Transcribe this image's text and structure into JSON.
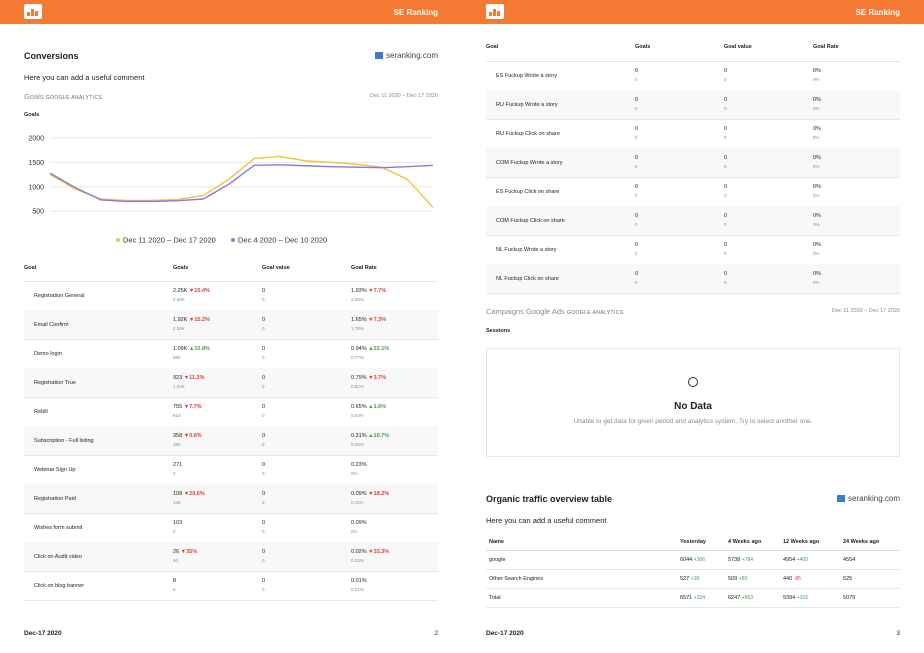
{
  "brand": "SE Ranking",
  "conversions": {
    "title": "Conversions",
    "site": "seranking.com",
    "comment": "Here you can add a useful comment",
    "source": "Goals",
    "source_tag": "GOOGLE ANALYTICS",
    "period": "Dec 11 2020 – Dec 17 2020",
    "chart_title": "Goals"
  },
  "chart_data": {
    "type": "line",
    "categories": [
      null,
      null,
      null,
      null,
      null,
      null,
      null,
      null,
      null,
      null,
      null,
      null,
      null,
      null,
      null,
      null
    ],
    "ylim": [
      300,
      2100
    ],
    "yticks": [
      500,
      1000,
      1500,
      2000
    ],
    "grid": true,
    "series": [
      {
        "name": "Dec 11 2020 – Dec 17 2020",
        "color": "#f7c13a",
        "values": [
          1250,
          950,
          750,
          720,
          720,
          740,
          820,
          1150,
          1580,
          1620,
          1530,
          1500,
          1460,
          1400,
          1150,
          580
        ]
      },
      {
        "name": "Dec 4 2020 – Dec 10 2020",
        "color": "#8a78e0",
        "values": [
          1280,
          980,
          730,
          700,
          700,
          715,
          750,
          1050,
          1440,
          1450,
          1430,
          1410,
          1400,
          1390,
          1410,
          1440
        ]
      }
    ]
  },
  "goals_table": {
    "columns": [
      "Goal",
      "Goals",
      "Goal value",
      "Goal Rate"
    ],
    "rows": [
      {
        "goal": "Registration General",
        "goals": "2.25K",
        "goals_change": "▼15.4%",
        "goals_prev": "2.66K",
        "value": "0",
        "value_prev": "0",
        "rate": "1.93%",
        "rate_change": "▼7.7%",
        "rate_prev": "2.09%"
      },
      {
        "goal": "Email Confirm",
        "goals": "1.92K",
        "goals_change": "▼15.2%",
        "goals_prev": "2.26K",
        "value": "0",
        "value_prev": "0",
        "rate": "1.65%",
        "rate_change": "▼7.3%",
        "rate_prev": "1.78%"
      },
      {
        "goal": "Demo login",
        "goals": "1.09K",
        "goals_change": "▲10.8%",
        "goals_prev": "982",
        "value": "0",
        "value_prev": "0",
        "rate": "0.94%",
        "rate_change": "▲22.1%",
        "rate_prev": "0.77%"
      },
      {
        "goal": "Registration True",
        "goals": "923",
        "goals_change": "▼11.2%",
        "goals_prev": "1.04K",
        "value": "0",
        "value_prev": "0",
        "rate": "0.79%",
        "rate_change": "▼3.7%",
        "rate_prev": "0.82%"
      },
      {
        "goal": "Rebill",
        "goals": "755",
        "goals_change": "▼7.7%",
        "goals_prev": "818",
        "value": "0",
        "value_prev": "0",
        "rate": "0.65%",
        "rate_change": "▲1.6%",
        "rate_prev": "0.64%"
      },
      {
        "goal": "Subscription - Full listing",
        "goals": "358",
        "goals_change": "▼0.6%",
        "goals_prev": "360",
        "value": "0",
        "value_prev": "0",
        "rate": "0.31%",
        "rate_change": "▲10.7%",
        "rate_prev": "0.28%"
      },
      {
        "goal": "Webinar Sign Up",
        "goals": "271",
        "goals_prev": "0",
        "value": "0",
        "value_prev": "0",
        "rate": "0.23%",
        "rate_prev": "0%"
      },
      {
        "goal": "Registration Paid",
        "goals": "108",
        "goals_change": "▼20.6%",
        "goals_prev": "136",
        "value": "0",
        "value_prev": "0",
        "rate": "0.09%",
        "rate_change": "▼18.2%",
        "rate_prev": "0.11%"
      },
      {
        "goal": "Wishes form submit",
        "goals": "103",
        "goals_prev": "0",
        "value": "0",
        "value_prev": "0",
        "rate": "0.09%",
        "rate_prev": "0%"
      },
      {
        "goal": "Click on Audit video",
        "goals": "26",
        "goals_change": "▼35%",
        "goals_prev": "40",
        "value": "0",
        "value_prev": "0",
        "rate": "0.02%",
        "rate_change": "▼33.3%",
        "rate_prev": "0.03%"
      },
      {
        "goal": "Click on blog banner",
        "goals": "8",
        "goals_prev": "8",
        "value": "0",
        "value_prev": "0",
        "rate": "0.01%",
        "rate_prev": "0.01%"
      }
    ]
  },
  "goals_table_2": {
    "columns": [
      "Goal",
      "Goals",
      "Goal value",
      "Goal Rate"
    ],
    "rows": [
      {
        "goal": "ES Fuckup Wrote a story",
        "goals": "0",
        "goals_prev": "0",
        "value": "0",
        "value_prev": "0",
        "rate": "0%",
        "rate_prev": "0%"
      },
      {
        "goal": "RU Fuckup Wrote a story",
        "goals": "0",
        "goals_prev": "0",
        "value": "0",
        "value_prev": "0",
        "rate": "0%",
        "rate_prev": "0%"
      },
      {
        "goal": "RU Fuckup Click on share",
        "goals": "0",
        "goals_prev": "0",
        "value": "0",
        "value_prev": "0",
        "rate": "0%",
        "rate_prev": "0%"
      },
      {
        "goal": "COM Fuckup Wrote a story",
        "goals": "0",
        "goals_prev": "0",
        "value": "0",
        "value_prev": "0",
        "rate": "0%",
        "rate_prev": "0%"
      },
      {
        "goal": "ES Fuckup Click on share",
        "goals": "0",
        "goals_prev": "0",
        "value": "0",
        "value_prev": "0",
        "rate": "0%",
        "rate_prev": "0%"
      },
      {
        "goal": "COM Fuckup Click on share",
        "goals": "0",
        "goals_prev": "0",
        "value": "0",
        "value_prev": "0",
        "rate": "0%",
        "rate_prev": "0%"
      },
      {
        "goal": "NL Fuckup Wrote a story",
        "goals": "0",
        "goals_prev": "0",
        "value": "0",
        "value_prev": "0",
        "rate": "0%",
        "rate_prev": "0%"
      },
      {
        "goal": "NL Fuckup Click on share",
        "goals": "0",
        "goals_prev": "0",
        "value": "0",
        "value_prev": "0",
        "rate": "0%",
        "rate_prev": "0%"
      }
    ]
  },
  "campaigns": {
    "source": "Campaigns Google Ads",
    "source_tag": "GOOGLE ANALYTICS",
    "period": "Dec 11 2020 – Dec 17 2020",
    "chart_title": "Sessions",
    "empty_title": "No Data",
    "empty_text": "Unable to get data for given period and analytics system. Try to select another one."
  },
  "organic": {
    "title": "Organic traffic overview table",
    "site": "seranking.com",
    "comment": "Here you can add a useful comment",
    "columns": [
      "Name",
      "Yesterday",
      "4 Weeks ago",
      "12 Weeks ago",
      "24 Weeks ago"
    ],
    "rows": [
      {
        "name": "google",
        "cells": [
          {
            "value": "6044",
            "change": "+306"
          },
          {
            "value": "5738",
            "change": "+784"
          },
          {
            "value": "4954",
            "change": "+400"
          },
          {
            "value": "4554"
          }
        ]
      },
      {
        "name": "Other Search Engines",
        "cells": [
          {
            "value": "527",
            "change": "+18"
          },
          {
            "value": "509",
            "change": "+69"
          },
          {
            "value": "440",
            "change": "-85"
          },
          {
            "value": "525"
          }
        ]
      },
      {
        "name": "Total",
        "cells": [
          {
            "value": "6571",
            "change": "+324"
          },
          {
            "value": "6247",
            "change": "+853"
          },
          {
            "value": "5394",
            "change": "+315"
          },
          {
            "value": "5079"
          }
        ]
      }
    ]
  },
  "footers": [
    {
      "date": "Dec-17 2020",
      "page": "2"
    },
    {
      "date": "Dec-17 2020",
      "page": "3"
    }
  ]
}
